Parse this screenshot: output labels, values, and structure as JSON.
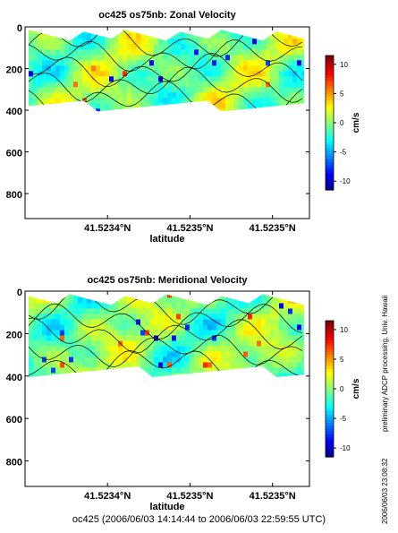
{
  "footer_caption": "oc425 (2006/06/03 14:14:44 to 2006/06/03 22:59:55 UTC)",
  "side_credit": "preliminary ADCP processing,  Univ. Hawaii",
  "side_timestamp": "2006/06/03 23:08:32",
  "chart_data": [
    {
      "type": "heatmap",
      "title": "oc425 os75nb: Zonal Velocity",
      "xlabel": "latitude",
      "ylabel": "",
      "x_tick_labels": [
        "41.5234°N",
        "41.5235°N",
        "41.5235°N"
      ],
      "y_ticks": [
        0,
        200,
        400,
        600,
        800
      ],
      "ylim": [
        920,
        0
      ],
      "y_reversed": true,
      "colorbar": {
        "label": "cm/s",
        "ticks": [
          10,
          5,
          0,
          -5,
          -10
        ],
        "range": [
          -11.5,
          11.5
        ]
      },
      "data_depth_range": [
        40,
        380
      ],
      "grid": false,
      "contours": true
    },
    {
      "type": "heatmap",
      "title": "oc425 os75nb: Meridional Velocity",
      "xlabel": "latitude",
      "ylabel": "",
      "x_tick_labels": [
        "41.5234°N",
        "41.5235°N",
        "41.5235°N"
      ],
      "y_ticks": [
        0,
        200,
        400,
        600,
        800
      ],
      "ylim": [
        920,
        0
      ],
      "y_reversed": true,
      "colorbar": {
        "label": "cm/s",
        "ticks": [
          10,
          5,
          0,
          -5,
          -10
        ],
        "range": [
          -11.5,
          11.5
        ]
      },
      "data_depth_range": [
        40,
        380
      ],
      "grid": false,
      "contours": true
    }
  ]
}
